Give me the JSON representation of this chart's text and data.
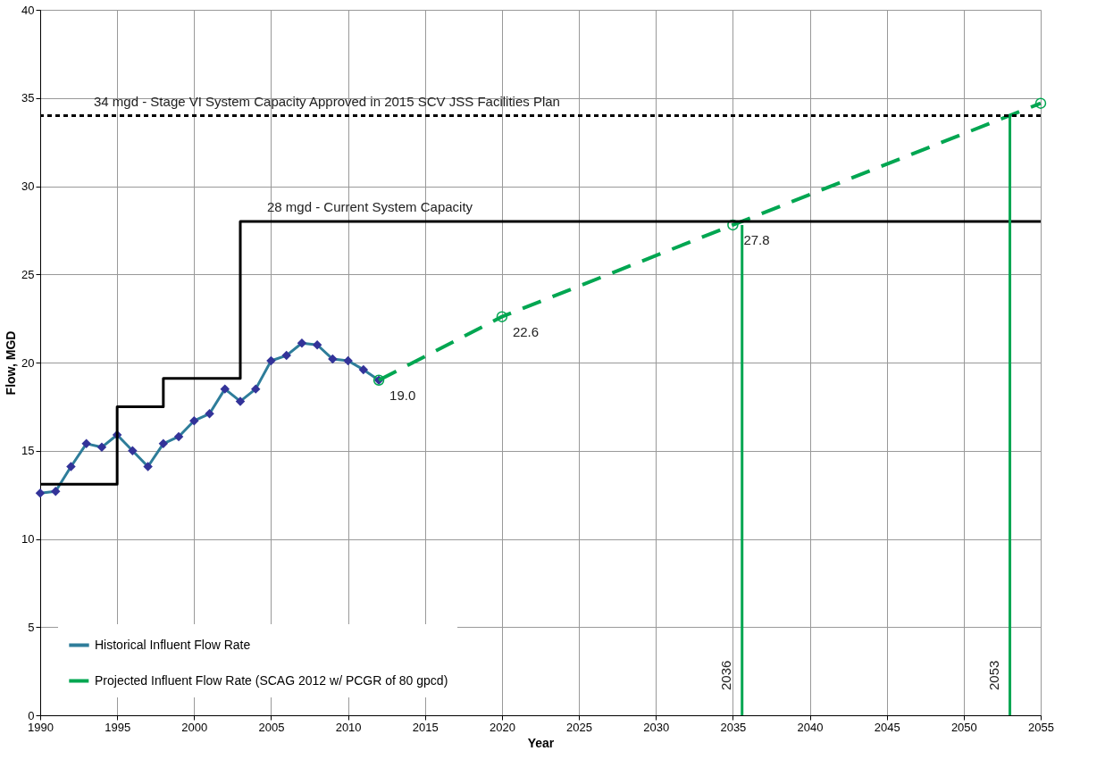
{
  "chart_data": {
    "type": "line",
    "xlabel": "Year",
    "ylabel": "Flow, MGD",
    "xlim": [
      1990,
      2055
    ],
    "xticks": [
      1990,
      1995,
      2000,
      2005,
      2010,
      2015,
      2020,
      2025,
      2030,
      2035,
      2040,
      2045,
      2050,
      2055
    ],
    "ylim": [
      0,
      40
    ],
    "yticks": [
      0,
      5,
      10,
      15,
      20,
      25,
      30,
      35,
      40
    ],
    "grid": true,
    "legend": "bottom left",
    "series": [
      {
        "name": "Historical Influent Flow Rate",
        "color": "#2e7d9a",
        "marker": "diamond",
        "line_style": "solid",
        "x": [
          1990,
          1991,
          1992,
          1993,
          1994,
          1995,
          1996,
          1997,
          1998,
          1999,
          2000,
          2001,
          2002,
          2003,
          2004,
          2005,
          2006,
          2007,
          2008,
          2009,
          2010,
          2011,
          2012
        ],
        "values": [
          12.6,
          12.7,
          14.1,
          15.4,
          15.2,
          15.9,
          15.0,
          14.1,
          15.4,
          15.8,
          16.7,
          17.1,
          18.5,
          17.8,
          18.5,
          20.1,
          20.4,
          21.1,
          21.0,
          20.2,
          20.1,
          19.6,
          19.0
        ]
      },
      {
        "name": "Projected Influent Flow Rate (SCAG 2012 w/ PCGR of 80 gpcd)",
        "color": "#00a651",
        "marker": "circle",
        "line_style": "dashed",
        "x": [
          2012,
          2020,
          2035,
          2055
        ],
        "values": [
          19.0,
          22.6,
          27.8,
          34.7
        ],
        "value_labels": [
          "19.0",
          "22.6",
          "27.8",
          null
        ]
      },
      {
        "type": "step",
        "color": "#000000",
        "marker": "none",
        "line_style": "solid",
        "x": [
          1990,
          1995,
          1998,
          2003,
          2055
        ],
        "values": [
          13.1,
          17.5,
          19.1,
          28.0,
          28.0
        ]
      },
      {
        "color": "#00a651",
        "marker": "none",
        "line_style": "solid",
        "x": [
          2035.6,
          2035.6
        ],
        "values": [
          0,
          27.8
        ]
      },
      {
        "color": "#00a651",
        "marker": "none",
        "line_style": "solid",
        "x": [
          2053,
          2053
        ],
        "values": [
          0,
          34.0
        ]
      }
    ],
    "ref_lines": [
      {
        "axis": "y",
        "value": 34,
        "label": "34 mgd - Stage VI System Capacity Approved in 2015 SCV JSS Facilities Plan",
        "color": "#000000",
        "line_style": "dotted"
      }
    ],
    "annotations": [
      {
        "text": "28 mgd - Current System Capacity",
        "x": 2003,
        "y": 28
      },
      {
        "text": "2036",
        "x": 2035.6,
        "y": 0
      },
      {
        "text": "2053",
        "x": 2053,
        "y": 0
      }
    ]
  }
}
